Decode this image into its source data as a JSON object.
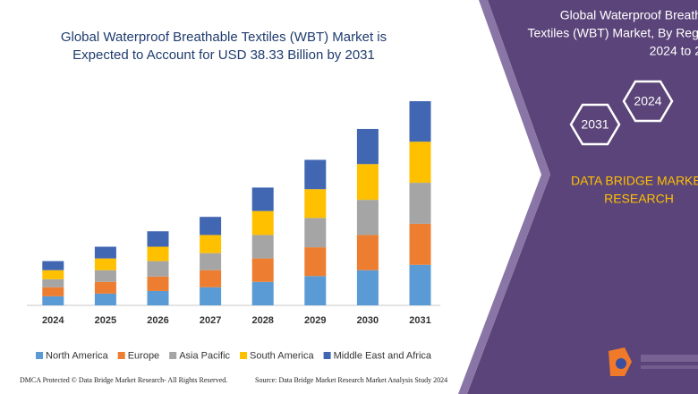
{
  "chart_data": {
    "type": "stacked_bar",
    "title": [
      "Global Waterproof Breathable Textiles (WBT) Market is",
      "Expected to Account for USD 38.33 Billion by 2031"
    ],
    "categories": [
      "2024",
      "2025",
      "2026",
      "2027",
      "2028",
      "2029",
      "2030",
      "2031"
    ],
    "series": [
      {
        "name": "North America",
        "color": "#5b9bd5",
        "values": [
          1.7,
          2.2,
          2.7,
          3.4,
          4.4,
          5.5,
          6.6,
          7.6
        ]
      },
      {
        "name": "Europe",
        "color": "#ed7d31",
        "values": [
          1.7,
          2.2,
          2.7,
          3.2,
          4.4,
          5.4,
          6.6,
          7.7
        ]
      },
      {
        "name": "Asia Pacific",
        "color": "#a5a5a5",
        "values": [
          1.5,
          2.2,
          2.9,
          3.2,
          4.4,
          5.5,
          6.6,
          7.7
        ]
      },
      {
        "name": "South America",
        "color": "#ffc000",
        "values": [
          1.7,
          2.2,
          2.7,
          3.4,
          4.5,
          5.4,
          6.7,
          7.7
        ]
      },
      {
        "name": "Middle East and Africa",
        "color": "#4267b2",
        "values": [
          1.7,
          2.2,
          2.9,
          3.4,
          4.4,
          5.5,
          6.6,
          7.6
        ]
      }
    ]
  },
  "panel": {
    "title": [
      "Global Waterproof Breath",
      "Textiles (WBT) Market, By Regi",
      "2024 to 2"
    ],
    "hexagons": [
      "2024",
      "2031"
    ],
    "brand": [
      "DATA BRIDGE MARKE",
      "RESEARCH"
    ]
  },
  "footer": {
    "left": "DMCA Protected © Data Bridge Market Research- All Rights Reserved.",
    "right": "Source: Data Bridge Market Research Market Analysis Study 2024"
  }
}
